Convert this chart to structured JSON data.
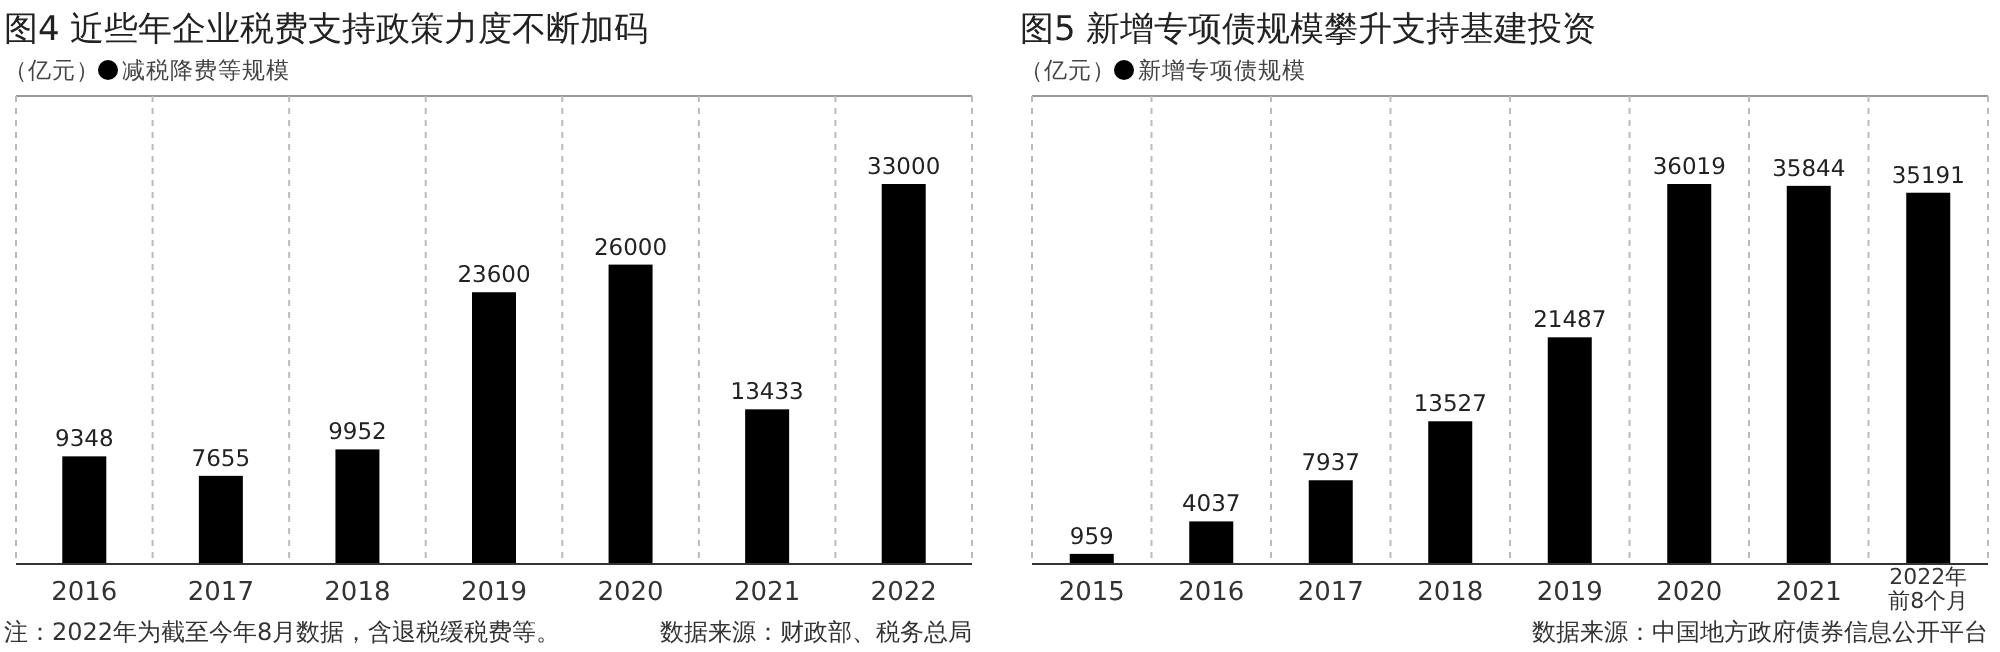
{
  "chart_data": [
    {
      "type": "bar",
      "title": "图4 近些年企业税费支持政策力度不断加码",
      "ylabel": "（亿元）",
      "legend": "top left",
      "grid": "x",
      "data_labels": true,
      "relative": false,
      "categories": [
        "2016",
        "2017",
        "2018",
        "2019",
        "2020",
        "2021",
        "2022"
      ],
      "series": [
        {
          "name": "减税降费等规模",
          "color": "#000000",
          "values": [
            9348,
            7655,
            9952,
            23600,
            26000,
            13433,
            33000
          ]
        }
      ],
      "annotations": [
        "注：2022年为截至今年8月数据，含退税缓税费等。",
        "数据来源：财政部、税务总局"
      ]
    },
    {
      "type": "bar",
      "title": "图5 新增专项债规模攀升支持基建投资",
      "ylabel": "（亿元）",
      "legend": "top left",
      "grid": "x",
      "data_labels": true,
      "relative": false,
      "categories": [
        "2015",
        "2016",
        "2017",
        "2018",
        "2019",
        "2020",
        "2021",
        "2022年前8个月"
      ],
      "series": [
        {
          "name": "新增专项债规模",
          "color": "#000000",
          "values": [
            959,
            4037,
            7937,
            13527,
            21487,
            36019,
            35844,
            35191
          ]
        }
      ],
      "annotations": [
        "数据来源：中国地方政府债券信息公开平台"
      ]
    }
  ]
}
